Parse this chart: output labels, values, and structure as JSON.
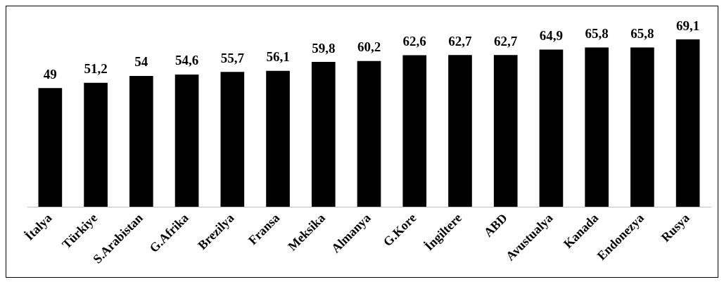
{
  "chart_data": {
    "type": "bar",
    "categories": [
      "İtalya",
      "Türkiye",
      "S.Arabistan",
      "G.Afrika",
      "Brezilya",
      "Fransa",
      "Meksika",
      "Almanya",
      "G.Kore",
      "İngiltere",
      "ABD",
      "Avustualya",
      "Kanada",
      "Endonezya",
      "Rusya"
    ],
    "values": [
      49,
      51.2,
      54,
      54.6,
      55.7,
      56.1,
      59.8,
      60.2,
      62.6,
      62.7,
      62.7,
      64.9,
      65.8,
      65.8,
      69.1
    ],
    "value_labels": [
      "49",
      "51,2",
      "54",
      "54,6",
      "55,7",
      "56,1",
      "59,8",
      "60,2",
      "62,6",
      "62,7",
      "62,7",
      "64,9",
      "65,8",
      "65,8",
      "69,1"
    ],
    "color": "#000000",
    "grid": false,
    "legend": false
  }
}
